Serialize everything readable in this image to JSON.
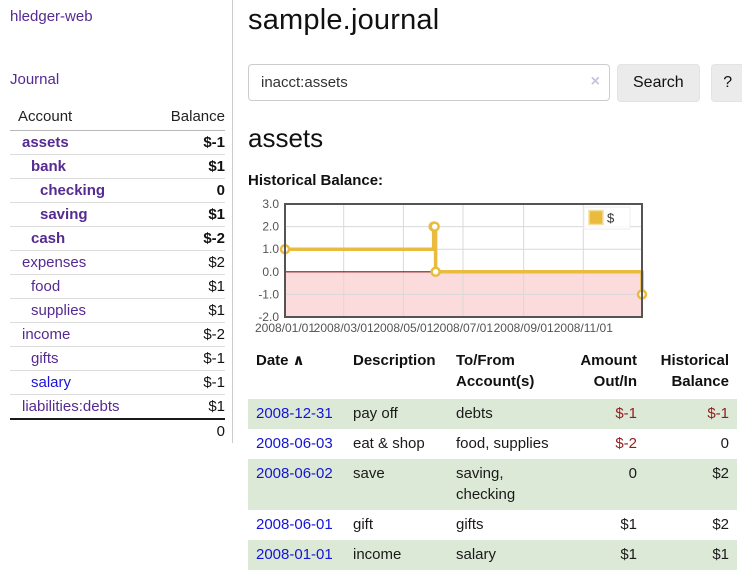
{
  "app": {
    "brand": "hledger-web"
  },
  "sidebar": {
    "journal_link": "Journal",
    "accounts": {
      "header_account": "Account",
      "header_balance": "Balance",
      "rows": [
        {
          "account": "assets",
          "balance": "$-1",
          "indent": 1,
          "bold": true,
          "balance_class": "neg-strong"
        },
        {
          "account": "bank",
          "balance": "$1",
          "indent": 2,
          "bold": true,
          "balance_class": ""
        },
        {
          "account": "checking",
          "balance": "0",
          "indent": 3,
          "bold": true,
          "balance_class": ""
        },
        {
          "account": "saving",
          "balance": "$1",
          "indent": 3,
          "bold": true,
          "balance_class": ""
        },
        {
          "account": "cash",
          "balance": "$-2",
          "indent": 2,
          "bold": true,
          "balance_class": "neg-strong"
        },
        {
          "account": "expenses",
          "balance": "$2",
          "indent": 1,
          "bold": false,
          "balance_class": ""
        },
        {
          "account": "food",
          "balance": "$1",
          "indent": 2,
          "bold": false,
          "balance_class": ""
        },
        {
          "account": "supplies",
          "balance": "$1",
          "indent": 2,
          "bold": false,
          "balance_class": ""
        },
        {
          "account": "income",
          "balance": "$-2",
          "indent": 1,
          "bold": false,
          "balance_class": "neg-soft"
        },
        {
          "account": "gifts",
          "balance": "$-1",
          "indent": 2,
          "bold": false,
          "balance_class": "neg-soft"
        },
        {
          "account": "salary",
          "balance": "$-1",
          "indent": 2,
          "bold": false,
          "balance_class": "neg-soft",
          "link_color": "blue"
        },
        {
          "account": "liabilities:debts",
          "balance": "$1",
          "indent": 1,
          "bold": false,
          "balance_class": ""
        }
      ],
      "total": "0"
    }
  },
  "header": {
    "title": "sample.journal"
  },
  "search": {
    "value": "inacct:assets",
    "clear_label": "×",
    "search_button": "Search",
    "help_button": "?"
  },
  "account_view": {
    "title": "assets",
    "chart_label": "Historical Balance:"
  },
  "chart_data": {
    "type": "line",
    "step": true,
    "title": "Historical Balance: assets",
    "series": [
      {
        "name": "$",
        "color": "#e9bb3f",
        "points": [
          {
            "date": "2008-01-01",
            "day": 0,
            "value": 1
          },
          {
            "date": "2008-06-01",
            "day": 152,
            "value": 2
          },
          {
            "date": "2008-06-02",
            "day": 153,
            "value": 2
          },
          {
            "date": "2008-06-03",
            "day": 154,
            "value": 0
          },
          {
            "date": "2008-12-31",
            "day": 365,
            "value": -1
          }
        ]
      }
    ],
    "x_range_days": [
      0,
      365
    ],
    "x_ticks": [
      {
        "label": "2008/01/01",
        "day": 0
      },
      {
        "label": "2008/03/01",
        "day": 60
      },
      {
        "label": "2008/05/01",
        "day": 121
      },
      {
        "label": "2008/07/01",
        "day": 182
      },
      {
        "label": "2008/09/01",
        "day": 244
      },
      {
        "label": "2008/11/01",
        "day": 305
      }
    ],
    "y_ticks": [
      3,
      2,
      1,
      0,
      -1,
      -2
    ],
    "y_tick_labels": [
      "3.0",
      "2.0",
      "1.0",
      "0.0",
      "-1.0",
      "-2.0"
    ],
    "ylim": [
      -2,
      3
    ],
    "grid": true,
    "legend": {
      "position": "top-right",
      "entries": [
        {
          "label": "$",
          "color": "#e9bb3f"
        }
      ]
    },
    "negative_area_color": "#fbdbdb",
    "zero_line_color": "#8f1010",
    "grid_color": "#d9d9d9",
    "border_color": "#545454",
    "tick_text_color": "#545454"
  },
  "register": {
    "columns": [
      {
        "label": "Date",
        "sort_icon": "∧",
        "align": "left"
      },
      {
        "label": "Description",
        "align": "left"
      },
      {
        "label": "To/From Account(s)",
        "align": "left"
      },
      {
        "label": "Amount Out/In",
        "align": "right"
      },
      {
        "label": "Historical Balance",
        "align": "right"
      }
    ],
    "rows": [
      {
        "date": "2008-12-31",
        "description": "pay off",
        "accounts": "debts",
        "amount": "$-1",
        "balance": "$-1",
        "amount_negative": true,
        "balance_negative": true
      },
      {
        "date": "2008-06-03",
        "description": "eat & shop",
        "accounts": "food, supplies",
        "amount": "$-2",
        "balance": "0",
        "amount_negative": true,
        "balance_negative": false
      },
      {
        "date": "2008-06-02",
        "description": "save",
        "accounts": "saving, checking",
        "amount": "0",
        "balance": "$2",
        "amount_negative": false,
        "balance_negative": false
      },
      {
        "date": "2008-06-01",
        "description": "gift",
        "accounts": "gifts",
        "amount": "$1",
        "balance": "$2",
        "amount_negative": false,
        "balance_negative": false
      },
      {
        "date": "2008-01-01",
        "description": "income",
        "accounts": "salary",
        "amount": "$1",
        "balance": "$1",
        "amount_negative": false,
        "balance_negative": false
      }
    ]
  },
  "colors": {
    "link_purple": "#552a92",
    "link_blue": "#1414d6",
    "negative_strong": "#8b1414",
    "negative_soft": "#b96f6f",
    "row_green": "#dde9d7",
    "chart_gold": "#e9bb3f",
    "chart_pink": "#fbdbdb"
  }
}
